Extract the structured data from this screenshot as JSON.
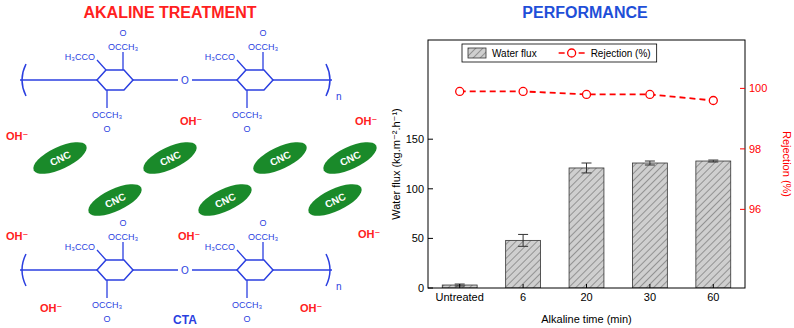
{
  "header": {
    "left_title": "AKALINE TREATMENT",
    "right_title": "PERFORMANCE"
  },
  "diagram": {
    "polymer_label": "CTA",
    "filler_label": "CNC",
    "ion_label": "OH⁻",
    "acetyl_up": "OCCH₃",
    "acetyl_left": "H₃CCO",
    "oxygen": "O",
    "repeat": "n"
  },
  "chart_data": {
    "type": "bar",
    "categories": [
      "Untreated",
      "6",
      "20",
      "30",
      "60"
    ],
    "x_label": "Alkaline time (min)",
    "y_label": "Water flux (kg.m⁻².h⁻¹)",
    "y2_label": "Rejection (%)",
    "ylim": [
      0,
      250
    ],
    "yticks": [
      0,
      50,
      100,
      150
    ],
    "y2lim": [
      93.4,
      101.6
    ],
    "y2ticks": [
      96,
      98,
      100
    ],
    "grid": false,
    "legend": "top",
    "series": [
      {
        "name": "Water flux",
        "type": "bar",
        "color": "#cfcfcf",
        "values": [
          3,
          48,
          121,
          126,
          128
        ],
        "errors": [
          1,
          6,
          5,
          2,
          1
        ]
      },
      {
        "name": "Rejection (%)",
        "type": "line",
        "axis": "y2",
        "color": "#ff0000",
        "marker": "circle",
        "line_style": "dashed",
        "values": [
          99.9,
          99.9,
          99.8,
          99.8,
          99.6
        ]
      }
    ]
  }
}
